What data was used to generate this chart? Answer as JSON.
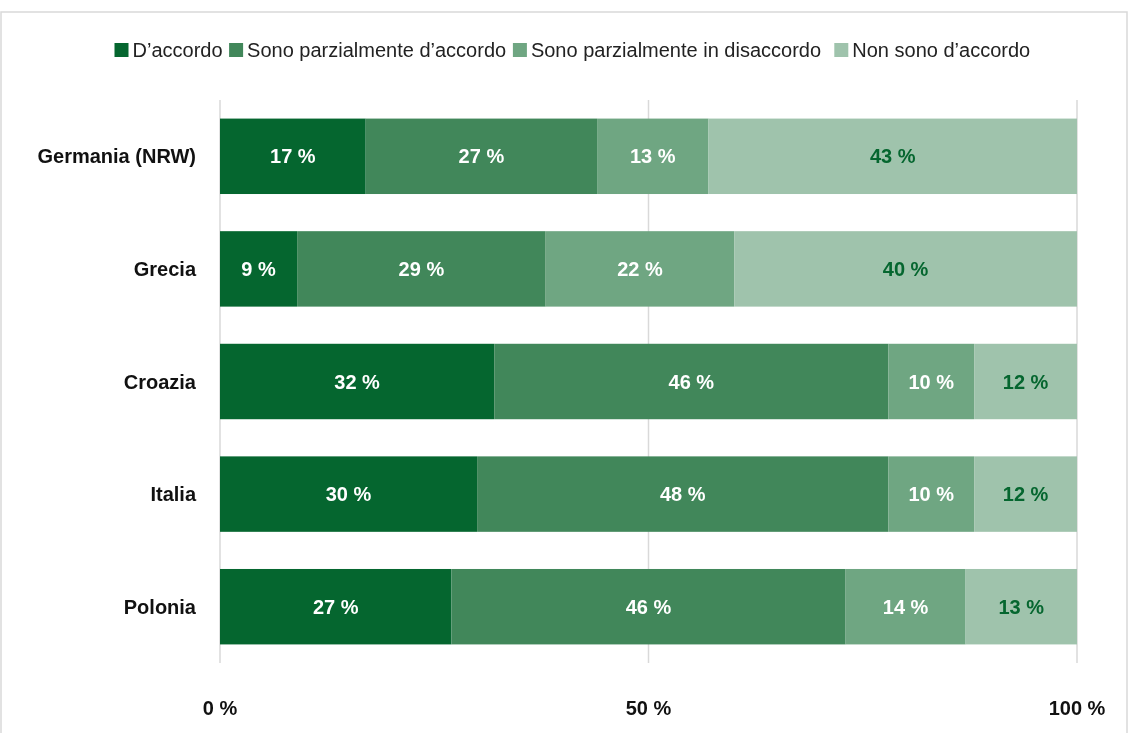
{
  "chart_data": {
    "type": "bar",
    "orientation": "horizontal",
    "stacked": true,
    "categories": [
      "Germania (NRW)",
      "Grecia",
      "Croazia",
      "Italia",
      "Polonia"
    ],
    "series": [
      {
        "name": "D’accordo",
        "color": "#05662f",
        "values": [
          17,
          9,
          32,
          30,
          27
        ],
        "value_labels": [
          "17 %",
          "9 %",
          "32 %",
          "30 %",
          "27 %"
        ]
      },
      {
        "name": "Sono parzialmente d’accordo",
        "color": "#41875a",
        "values": [
          27,
          29,
          46,
          48,
          46
        ],
        "value_labels": [
          "27 %",
          "29 %",
          "46 %",
          "48 %",
          "46 %"
        ]
      },
      {
        "name": "Sono parzialmente in disaccordo",
        "color": "#6fa682",
        "values": [
          13,
          22,
          10,
          10,
          14
        ],
        "value_labels": [
          "13 %",
          "22 %",
          "10 %",
          "10 %",
          "14 %"
        ]
      },
      {
        "name": "Non sono d’accordo",
        "color": "#9fc3ac",
        "values": [
          43,
          40,
          12,
          12,
          13
        ],
        "value_labels": [
          "43 %",
          "40 %",
          "12 %",
          "12 %",
          "13 %"
        ]
      }
    ],
    "xlim": [
      0,
      100
    ],
    "xticks": [
      {
        "value": 0,
        "label": "0 %"
      },
      {
        "value": 50,
        "label": "50 %"
      },
      {
        "value": 100,
        "label": "100 %"
      }
    ],
    "grid": "x",
    "legend": "top"
  }
}
